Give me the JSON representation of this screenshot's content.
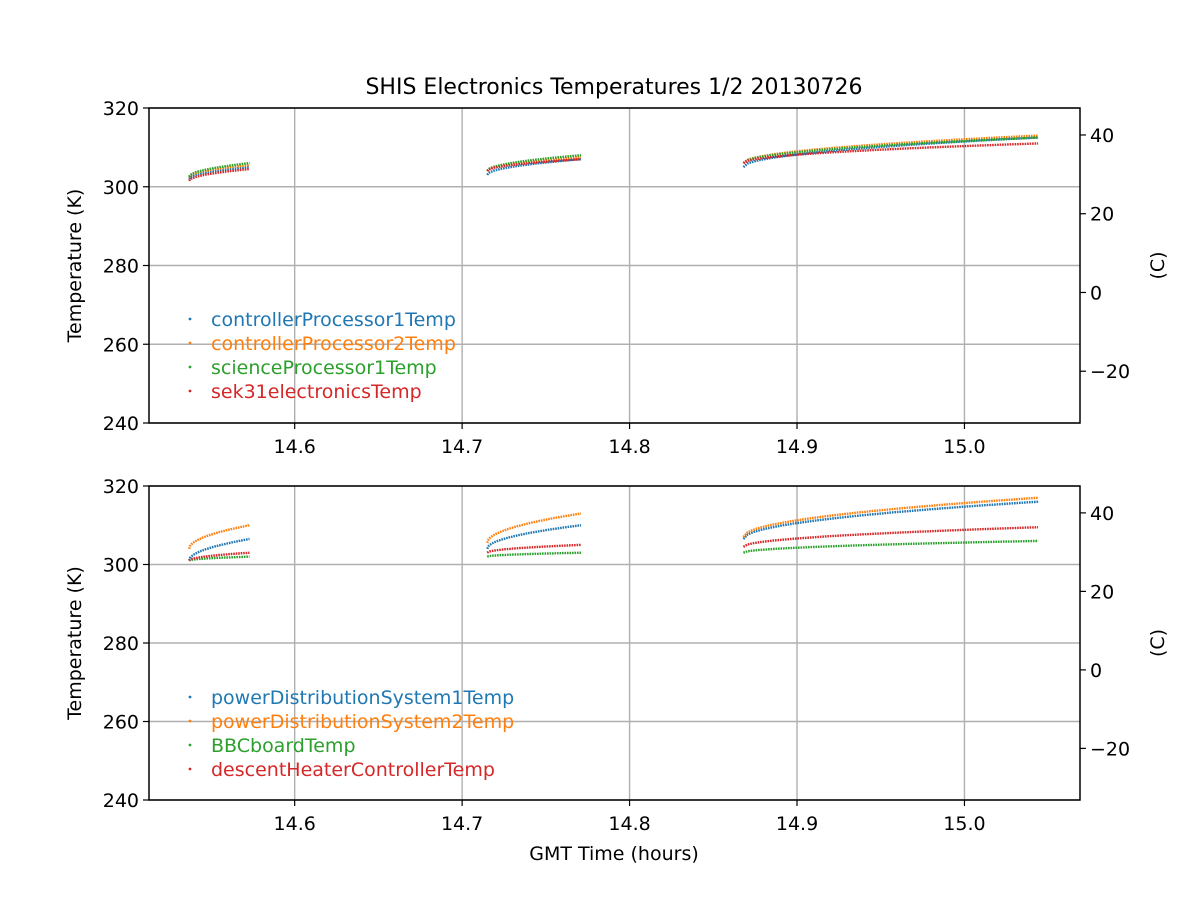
{
  "title": "SHIS Electronics Temperatures 1/2 20130726",
  "xlabel": "GMT Time (hours)",
  "colors": {
    "blue": "#1f77b4",
    "orange": "#ff7f0e",
    "green": "#2ca02c",
    "red": "#d62728",
    "grid": "#b0b0b0"
  },
  "chart_data": [
    {
      "type": "scatter",
      "ylabel": "Temperature (K)",
      "ylabel2": "(C)",
      "xlim": [
        14.513,
        15.069
      ],
      "ylim": [
        240,
        320
      ],
      "xticks": [
        14.6,
        14.7,
        14.8,
        14.9,
        15.0
      ],
      "xticklabels": [
        "14.6",
        "14.7",
        "14.8",
        "14.9",
        "15.0"
      ],
      "yticks": [
        240,
        260,
        280,
        300,
        320
      ],
      "y2ticks": [
        -20,
        0,
        20,
        40
      ],
      "y2ticklabels": [
        "−20",
        "0",
        "20",
        "40"
      ],
      "grid": true,
      "legend_position": "lower-left",
      "series": [
        {
          "name": "controllerProcessor1Temp",
          "color": "blue",
          "segments": [
            {
              "x": [
                14.537,
                14.573
              ],
              "y": [
                302.0,
                305.0
              ]
            },
            {
              "x": [
                14.715,
                14.771
              ],
              "y": [
                303.0,
                307.0
              ]
            },
            {
              "x": [
                14.868,
                15.044
              ],
              "y": [
                305.0,
                312.5
              ]
            }
          ]
        },
        {
          "name": "controllerProcessor2Temp",
          "color": "orange",
          "segments": [
            {
              "x": [
                14.537,
                14.573
              ],
              "y": [
                302.5,
                305.5
              ]
            },
            {
              "x": [
                14.715,
                14.771
              ],
              "y": [
                304.0,
                307.5
              ]
            },
            {
              "x": [
                14.868,
                15.044
              ],
              "y": [
                306.0,
                313.0
              ]
            }
          ]
        },
        {
          "name": "scienceProcessor1Temp",
          "color": "green",
          "segments": [
            {
              "x": [
                14.537,
                14.573
              ],
              "y": [
                302.5,
                306.0
              ]
            },
            {
              "x": [
                14.715,
                14.771
              ],
              "y": [
                304.0,
                308.0
              ]
            },
            {
              "x": [
                14.868,
                15.044
              ],
              "y": [
                306.0,
                312.5
              ]
            }
          ]
        },
        {
          "name": "sek31electronicsTemp",
          "color": "red",
          "segments": [
            {
              "x": [
                14.537,
                14.573
              ],
              "y": [
                301.5,
                304.5
              ]
            },
            {
              "x": [
                14.715,
                14.771
              ],
              "y": [
                304.0,
                307.0
              ]
            },
            {
              "x": [
                14.868,
                15.044
              ],
              "y": [
                306.0,
                311.0
              ]
            }
          ]
        }
      ]
    },
    {
      "type": "scatter",
      "ylabel": "Temperature (K)",
      "ylabel2": "(C)",
      "xlim": [
        14.513,
        15.069
      ],
      "ylim": [
        240,
        320
      ],
      "xticks": [
        14.6,
        14.7,
        14.8,
        14.9,
        15.0
      ],
      "xticklabels": [
        "14.6",
        "14.7",
        "14.8",
        "14.9",
        "15.0"
      ],
      "yticks": [
        240,
        260,
        280,
        300,
        320
      ],
      "y2ticks": [
        -20,
        0,
        20,
        40
      ],
      "y2ticklabels": [
        "−20",
        "0",
        "20",
        "40"
      ],
      "grid": true,
      "legend_position": "lower-left",
      "series": [
        {
          "name": "powerDistributionSystem1Temp",
          "color": "blue",
          "segments": [
            {
              "x": [
                14.537,
                14.573
              ],
              "y": [
                301.0,
                306.5
              ]
            },
            {
              "x": [
                14.715,
                14.771
              ],
              "y": [
                304.0,
                310.0
              ]
            },
            {
              "x": [
                14.868,
                15.044
              ],
              "y": [
                306.5,
                316.0
              ]
            }
          ]
        },
        {
          "name": "powerDistributionSystem2Temp",
          "color": "orange",
          "segments": [
            {
              "x": [
                14.537,
                14.573
              ],
              "y": [
                304.0,
                310.0
              ]
            },
            {
              "x": [
                14.715,
                14.771
              ],
              "y": [
                305.5,
                313.0
              ]
            },
            {
              "x": [
                14.868,
                15.044
              ],
              "y": [
                307.0,
                317.0
              ]
            }
          ]
        },
        {
          "name": "BBCboardTemp",
          "color": "green",
          "segments": [
            {
              "x": [
                14.537,
                14.573
              ],
              "y": [
                301.0,
                302.0
              ]
            },
            {
              "x": [
                14.715,
                14.771
              ],
              "y": [
                302.0,
                303.0
              ]
            },
            {
              "x": [
                14.868,
                15.044
              ],
              "y": [
                303.0,
                306.0
              ]
            }
          ]
        },
        {
          "name": "descentHeaterControllerTemp",
          "color": "red",
          "segments": [
            {
              "x": [
                14.537,
                14.573
              ],
              "y": [
                301.0,
                303.0
              ]
            },
            {
              "x": [
                14.715,
                14.771
              ],
              "y": [
                303.0,
                305.0
              ]
            },
            {
              "x": [
                14.868,
                15.044
              ],
              "y": [
                304.5,
                309.5
              ]
            }
          ]
        }
      ]
    }
  ]
}
